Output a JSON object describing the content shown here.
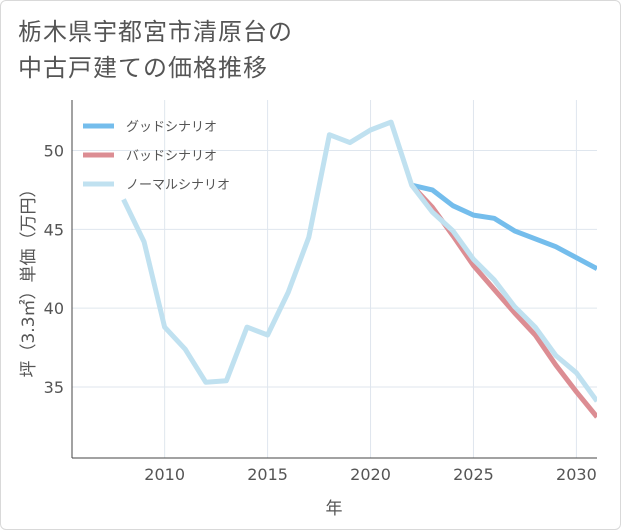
{
  "title_lines": [
    "栃木県宇都宮市清原台の",
    "中古戸建ての価格推移"
  ],
  "chart_data": {
    "type": "line",
    "title": "栃木県宇都宮市清原台の中古戸建ての価格推移",
    "xlabel": "年",
    "ylabel": "坪（3.3㎡）単価（万円）",
    "xlim": [
      2005.5,
      2031
    ],
    "ylim": [
      30.5,
      53.2
    ],
    "xticks": [
      2010,
      2015,
      2020,
      2025,
      2030
    ],
    "yticks": [
      35,
      40,
      45,
      50
    ],
    "grid": true,
    "legend_position": "top-left",
    "series": [
      {
        "name": "グッドシナリオ",
        "color": "#74bdec",
        "x": [
          2022,
          2023,
          2024,
          2025,
          2026,
          2027,
          2028,
          2029,
          2030,
          2031
        ],
        "values": [
          47.8,
          47.5,
          46.5,
          45.9,
          45.7,
          44.9,
          44.4,
          43.9,
          43.2,
          42.5
        ]
      },
      {
        "name": "バッドシナリオ",
        "color": "#dc8d93",
        "x": [
          2022,
          2023,
          2024,
          2025,
          2026,
          2027,
          2028,
          2029,
          2030,
          2031
        ],
        "values": [
          47.8,
          46.4,
          44.6,
          42.7,
          41.2,
          39.7,
          38.3,
          36.4,
          34.7,
          33.1
        ]
      },
      {
        "name": "ノーマルシナリオ",
        "color": "#c0e1f0",
        "x": [
          2008,
          2009,
          2010,
          2011,
          2012,
          2013,
          2014,
          2015,
          2016,
          2017,
          2018,
          2019,
          2020,
          2021,
          2022,
          2023,
          2024,
          2025,
          2026,
          2027,
          2028,
          2029,
          2030,
          2031
        ],
        "values": [
          46.9,
          44.2,
          38.8,
          37.4,
          35.3,
          35.4,
          38.8,
          38.3,
          41.0,
          44.5,
          51.0,
          50.5,
          51.3,
          51.8,
          47.8,
          46.1,
          44.9,
          43.1,
          41.8,
          40.1,
          38.8,
          37.0,
          35.9,
          34.1
        ]
      }
    ]
  }
}
